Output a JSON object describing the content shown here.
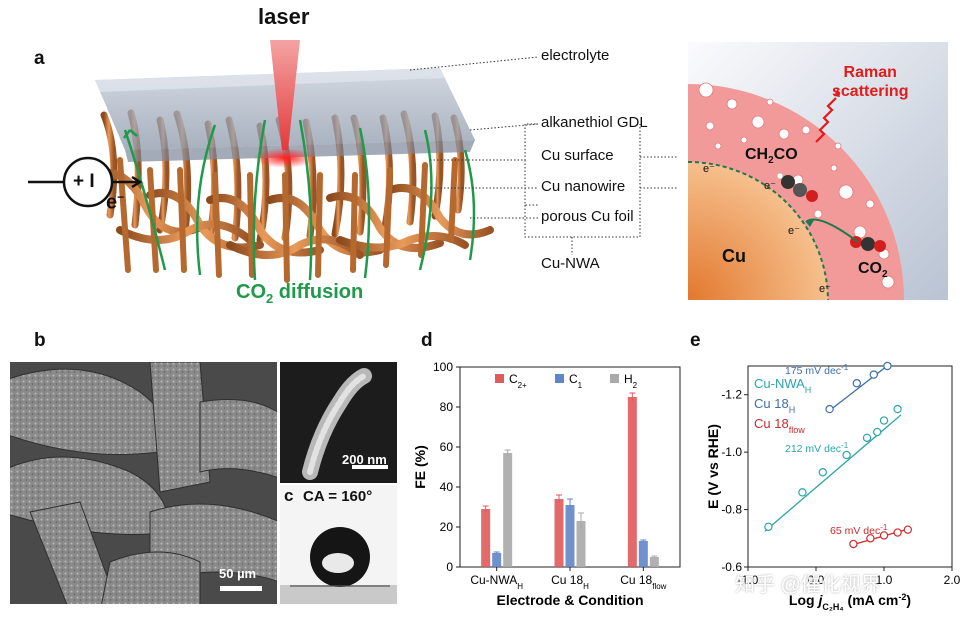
{
  "panels": {
    "a": "a",
    "b": "b",
    "c": "c",
    "d": "d",
    "e": "e"
  },
  "panel_a": {
    "laser_label": "laser",
    "electron_label": "e",
    "electron_sup": "−",
    "circuit_text": "+ I",
    "co2_diffusion": {
      "prefix": "CO",
      "sub": "2",
      "suffix": " diffusion"
    },
    "callouts": {
      "electrolyte": "electrolyte",
      "gdl": "alkanethiol GDL",
      "cu_surface": "Cu surface",
      "cu_nanowire": "Cu nanowire",
      "porous_foil": "porous Cu foil",
      "cu_nwa": "Cu-NWA"
    },
    "inset": {
      "raman": [
        "Raman",
        "scattering"
      ],
      "ch2co": {
        "a": "CH",
        "b": "2",
        "c": "CO"
      },
      "cu": "Cu",
      "co2": {
        "a": "CO",
        "b": "2"
      },
      "e_minus": "e⁻"
    }
  },
  "panel_b": {
    "scale_main": "50 µm",
    "scale_inset": "200 nm"
  },
  "panel_c": {
    "contact_angle": "CA = 160°"
  },
  "chart_d": {
    "type": "bar",
    "ylabel": "FE (%)",
    "xlabel": "Electrode & Condition",
    "ylim": [
      0,
      100
    ],
    "yticks": [
      0,
      20,
      40,
      60,
      80,
      100
    ],
    "categories": [
      {
        "main": "Cu-NWA",
        "sub": "H"
      },
      {
        "main": "Cu 18",
        "sub": "H"
      },
      {
        "main": "Cu 18",
        "sub": "flow"
      }
    ],
    "series": [
      {
        "name": "C",
        "sub": "2+",
        "color": "#e05a5a",
        "values": [
          29,
          34,
          85
        ],
        "errors": [
          1.5,
          2,
          2
        ]
      },
      {
        "name": "C",
        "sub": "1",
        "color": "#5f86c9",
        "values": [
          7,
          31,
          13
        ],
        "errors": [
          0.5,
          3,
          0.5
        ]
      },
      {
        "name": "H",
        "sub": "2",
        "color": "#a9a9a9",
        "values": [
          57,
          23,
          5
        ],
        "errors": [
          1.5,
          4,
          0.5
        ]
      }
    ]
  },
  "chart_e": {
    "type": "scatter",
    "ylabel": "E (V vs RHE)",
    "xlabel": {
      "a": "Log ",
      "b": "j",
      "c": "C₂H₄",
      "d": " (mA cm",
      "e": "-2",
      "f": ")"
    },
    "xlim": [
      -1.0,
      2.0
    ],
    "ylim": [
      -0.6,
      -1.3
    ],
    "xticks": [
      "-1.0",
      "0.0",
      "1.0",
      "2.0"
    ],
    "yticks": [
      "-0.6",
      "-0.8",
      "-1.0",
      "-1.2"
    ],
    "ytick_values": [
      -0.6,
      -0.8,
      -1.0,
      -1.2
    ],
    "xtick_values": [
      -1.0,
      0.0,
      1.0,
      2.0
    ],
    "series": [
      {
        "name": "Cu-NWA",
        "sub": "H",
        "color": "#2aa6a6",
        "points": [
          [
            -0.7,
            -0.74
          ],
          [
            -0.2,
            -0.86
          ],
          [
            0.1,
            -0.93
          ],
          [
            0.45,
            -0.99
          ],
          [
            0.75,
            -1.05
          ],
          [
            0.9,
            -1.07
          ],
          [
            1.0,
            -1.11
          ],
          [
            1.2,
            -1.15
          ]
        ],
        "fit": [
          [
            -0.75,
            -0.725
          ],
          [
            1.25,
            -1.13
          ]
        ],
        "slope_label": "212 mV dec",
        "slope_sup": "-1"
      },
      {
        "name": "Cu 18",
        "sub": "H",
        "color": "#3e6fb0",
        "points": [
          [
            0.2,
            -1.15
          ],
          [
            0.6,
            -1.24
          ],
          [
            0.85,
            -1.27
          ],
          [
            1.05,
            -1.3
          ]
        ],
        "fit": [
          [
            0.2,
            -1.145
          ],
          [
            1.1,
            -1.31
          ]
        ],
        "slope_label": "175 mV dec",
        "slope_sup": "-1"
      },
      {
        "name": "Cu 18",
        "sub": "flow",
        "color": "#d02a2a",
        "points": [
          [
            0.55,
            -0.68
          ],
          [
            0.8,
            -0.7
          ],
          [
            1.0,
            -0.71
          ],
          [
            1.2,
            -0.72
          ],
          [
            1.35,
            -0.73
          ]
        ],
        "fit": [
          [
            0.5,
            -0.675
          ],
          [
            1.4,
            -0.735
          ]
        ],
        "slope_label": "65 mV dec",
        "slope_sup": "-1"
      }
    ]
  },
  "watermark": "知乎 @催化视界"
}
